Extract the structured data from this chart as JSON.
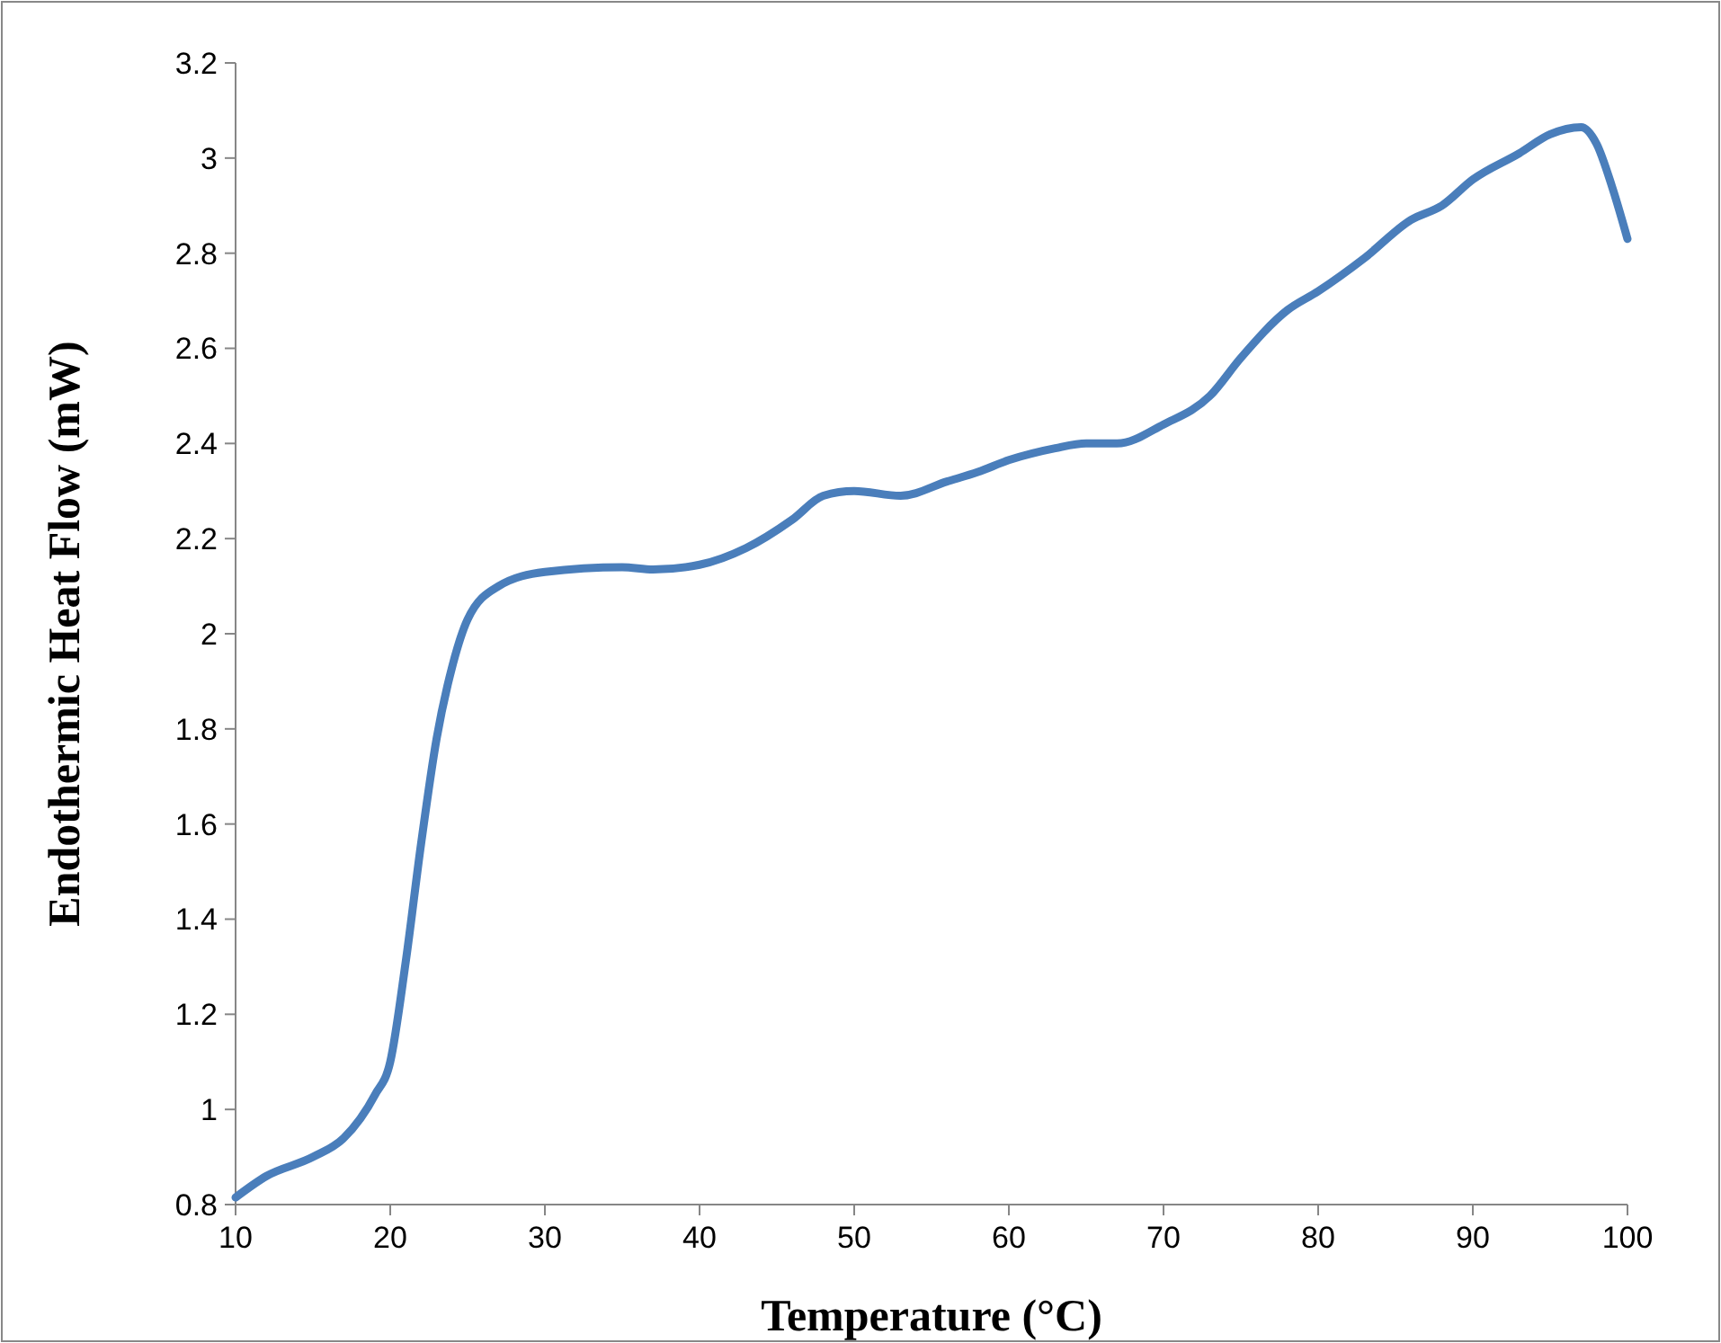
{
  "chart_data": {
    "type": "line",
    "xlabel": "Temperature (°C)",
    "ylabel": "Endothermic Heat Flow (mW)",
    "xlim": [
      10,
      100
    ],
    "xticks": [
      10,
      20,
      30,
      40,
      50,
      60,
      70,
      80,
      90,
      100
    ],
    "ylim": [
      0.8,
      3.2
    ],
    "yticks": [
      0.8,
      1,
      1.2,
      1.4,
      1.6,
      1.8,
      2,
      2.2,
      2.4,
      2.6,
      2.8,
      3,
      3.2
    ],
    "grid": false,
    "marker": "none",
    "line_style": "solid",
    "series": [
      {
        "color": "#4a7ebb",
        "x": [
          10,
          12,
          15,
          17,
          19,
          20,
          21,
          22,
          23,
          24,
          25,
          27,
          30,
          35,
          37,
          40,
          43,
          46,
          48,
          50,
          53,
          56,
          58,
          60,
          63,
          65,
          67,
          70,
          73,
          75,
          78,
          80,
          83,
          86,
          88,
          90,
          93,
          95,
          97,
          98,
          99,
          100
        ],
        "values": [
          0.815,
          0.86,
          0.9,
          0.94,
          1.03,
          1.1,
          1.31,
          1.56,
          1.78,
          1.93,
          2.03,
          2.1,
          2.13,
          2.14,
          2.135,
          2.145,
          2.18,
          2.24,
          2.29,
          2.3,
          2.29,
          2.32,
          2.34,
          2.365,
          2.39,
          2.4,
          2.4,
          2.44,
          2.5,
          2.58,
          2.68,
          2.72,
          2.79,
          2.87,
          2.9,
          2.955,
          3.01,
          3.05,
          3.065,
          3.03,
          2.94,
          2.83
        ]
      }
    ]
  }
}
